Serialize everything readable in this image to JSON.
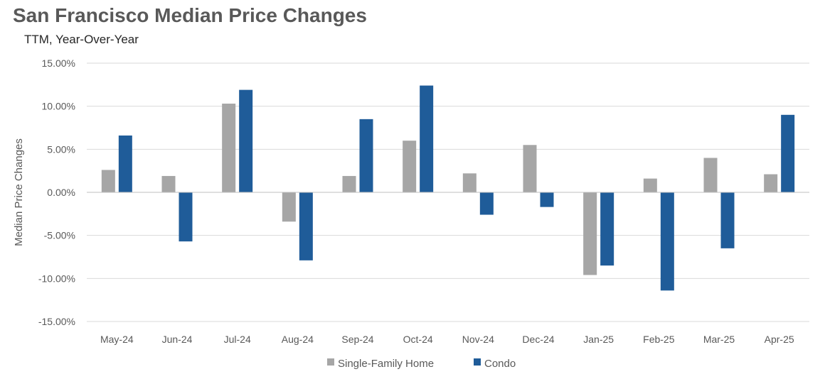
{
  "title": "San Francisco Median Price Changes",
  "subtitle": "TTM, Year-Over-Year",
  "chart_data": {
    "type": "bar",
    "title": "San Francisco Median Price Changes",
    "subtitle": "TTM, Year-Over-Year",
    "xlabel": "",
    "ylabel": "Median Price Changes",
    "categories": [
      "May-24",
      "Jun-24",
      "Jul-24",
      "Aug-24",
      "Sep-24",
      "Oct-24",
      "Nov-24",
      "Dec-24",
      "Jan-25",
      "Feb-25",
      "Mar-25",
      "Apr-25"
    ],
    "series": [
      {
        "name": "Single-Family Home",
        "color": "#A6A6A6",
        "values": [
          2.6,
          1.9,
          10.3,
          -3.4,
          1.9,
          6.0,
          2.2,
          5.5,
          -9.6,
          1.6,
          4.0,
          2.1
        ]
      },
      {
        "name": "Condo",
        "color": "#1F5C99",
        "values": [
          6.6,
          -5.7,
          11.9,
          -7.9,
          8.5,
          12.4,
          -2.6,
          -1.7,
          -8.5,
          -11.4,
          -6.5,
          9.0
        ]
      }
    ],
    "ylim": [
      -15,
      15
    ],
    "yticks": [
      15,
      10,
      5,
      0,
      -5,
      -10,
      -15
    ],
    "ytick_labels": [
      "15.00%",
      "10.00%",
      "5.00%",
      "0.00%",
      "-5.00%",
      "-10.00%",
      "-15.00%"
    ],
    "grid": true,
    "legend_position": "bottom"
  }
}
